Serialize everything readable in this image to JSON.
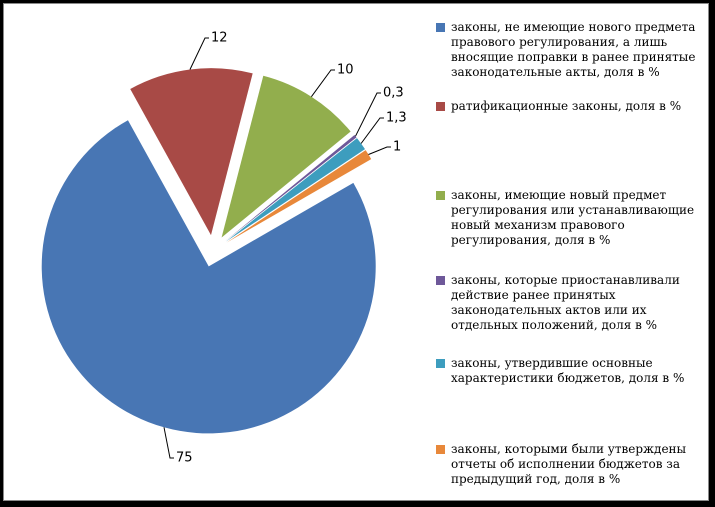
{
  "chart_data": {
    "type": "pie",
    "title": "",
    "exploded": true,
    "start_angle_clockwise_from_top_deg": 60,
    "legend_position": "right",
    "grid": false,
    "slices": [
      {
        "label": "законы, не имеющие нового предмета правового регулирования, а лишь вносящие поправки в ранее принятые законодательные акты, доля в %",
        "value": 75,
        "data_label": "75",
        "color": "#4876B4"
      },
      {
        "label": "ратификационные законы, доля в %",
        "value": 12,
        "data_label": "12",
        "color": "#A84A46"
      },
      {
        "label": "законы, имеющие новый предмет регулирования или устанавливающие новый механизм правового регулирования, доля в %",
        "value": 10,
        "data_label": "10",
        "color": "#92AE4D"
      },
      {
        "label": "законы, которые приостанавливали действие ранее принятых законодательных актов или их отдельных положений, доля в %",
        "value": 0.3,
        "data_label": "0,3",
        "color": "#6E5899"
      },
      {
        "label": "законы, утвердившие основные характеристики бюджетов, доля в %",
        "value": 1.3,
        "data_label": "1,3",
        "color": "#3D9DBE"
      },
      {
        "label": "законы, которыми были утверждены отчеты об исполнении бюджетов за предыдущий год, доля в %",
        "value": 1,
        "data_label": "1",
        "color": "#E8883A"
      }
    ],
    "colors": {
      "background": "#FFFFFF",
      "outer_frame": "#000000",
      "plot_border": "#8A8A8A",
      "leader_line": "#000000",
      "data_label_text": "#000000",
      "legend_text": "#000000"
    }
  }
}
